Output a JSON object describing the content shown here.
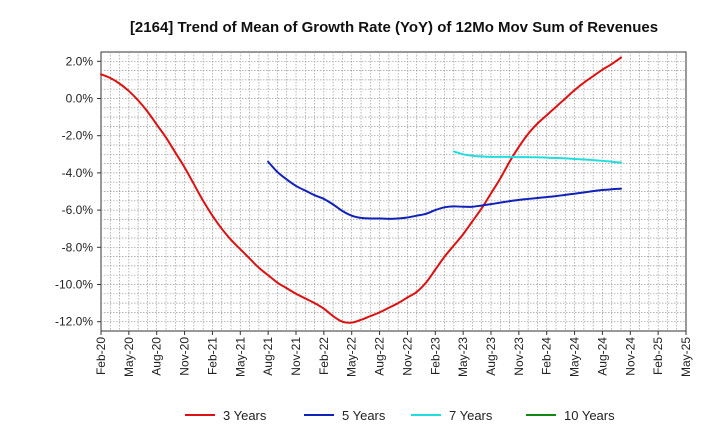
{
  "chart_data": {
    "type": "line",
    "title": "[2164]  Trend of Mean of Growth Rate (YoY) of 12Mo Mov Sum of Revenues",
    "xlabel": "",
    "ylabel": "",
    "ylim": [
      -12.5,
      2.5
    ],
    "yticks": [
      2.0,
      0.0,
      -2.0,
      -4.0,
      -6.0,
      -8.0,
      -10.0,
      -12.0
    ],
    "ytick_labels": [
      "2.0%",
      "0.0%",
      "-2.0%",
      "-4.0%",
      "-6.0%",
      "-8.0%",
      "-10.0%",
      "-12.0%"
    ],
    "xtick_labels": [
      "Feb-20",
      "May-20",
      "Aug-20",
      "Nov-20",
      "Feb-21",
      "May-21",
      "Aug-21",
      "Nov-21",
      "Feb-22",
      "May-22",
      "Aug-22",
      "Nov-22",
      "Feb-23",
      "May-23",
      "Aug-23",
      "Nov-23",
      "Feb-24",
      "May-24",
      "Aug-24",
      "Nov-24",
      "Feb-25",
      "May-25"
    ],
    "x_range_months": [
      0,
      63
    ],
    "grid": true,
    "series": [
      {
        "name": "3 Years",
        "color": "#dd1111",
        "points": [
          [
            0,
            1.3
          ],
          [
            1,
            1.1
          ],
          [
            2,
            0.8
          ],
          [
            3,
            0.4
          ],
          [
            4,
            -0.1
          ],
          [
            5,
            -0.7
          ],
          [
            6,
            -1.4
          ],
          [
            7,
            -2.1
          ],
          [
            8,
            -2.9
          ],
          [
            9,
            -3.7
          ],
          [
            10,
            -4.6
          ],
          [
            11,
            -5.5
          ],
          [
            12,
            -6.3
          ],
          [
            13,
            -7.0
          ],
          [
            14,
            -7.6
          ],
          [
            15,
            -8.1
          ],
          [
            16,
            -8.6
          ],
          [
            17,
            -9.1
          ],
          [
            18,
            -9.5
          ],
          [
            19,
            -9.9
          ],
          [
            20,
            -10.2
          ],
          [
            21,
            -10.5
          ],
          [
            22,
            -10.75
          ],
          [
            23,
            -11.0
          ],
          [
            24,
            -11.3
          ],
          [
            25,
            -11.7
          ],
          [
            26,
            -12.0
          ],
          [
            27,
            -12.05
          ],
          [
            28,
            -11.9
          ],
          [
            29,
            -11.7
          ],
          [
            30,
            -11.5
          ],
          [
            31,
            -11.25
          ],
          [
            32,
            -11.0
          ],
          [
            33,
            -10.7
          ],
          [
            34,
            -10.4
          ],
          [
            35,
            -9.9
          ],
          [
            36,
            -9.2
          ],
          [
            37,
            -8.5
          ],
          [
            38,
            -7.9
          ],
          [
            39,
            -7.3
          ],
          [
            40,
            -6.6
          ],
          [
            41,
            -5.9
          ],
          [
            42,
            -5.1
          ],
          [
            43,
            -4.3
          ],
          [
            44,
            -3.4
          ],
          [
            45,
            -2.6
          ],
          [
            46,
            -1.9
          ],
          [
            47,
            -1.35
          ],
          [
            48,
            -0.9
          ],
          [
            49,
            -0.45
          ],
          [
            50,
            0.0
          ],
          [
            51,
            0.45
          ],
          [
            52,
            0.85
          ],
          [
            53,
            1.2
          ],
          [
            54,
            1.55
          ],
          [
            55,
            1.85
          ],
          [
            56,
            2.2
          ]
        ]
      },
      {
        "name": "5 Years",
        "color": "#1122bb",
        "points": [
          [
            18,
            -3.4
          ],
          [
            19,
            -3.95
          ],
          [
            20,
            -4.35
          ],
          [
            21,
            -4.7
          ],
          [
            22,
            -4.95
          ],
          [
            23,
            -5.2
          ],
          [
            24,
            -5.4
          ],
          [
            25,
            -5.7
          ],
          [
            26,
            -6.05
          ],
          [
            27,
            -6.3
          ],
          [
            28,
            -6.42
          ],
          [
            29,
            -6.45
          ],
          [
            30,
            -6.45
          ],
          [
            31,
            -6.47
          ],
          [
            32,
            -6.45
          ],
          [
            33,
            -6.4
          ],
          [
            34,
            -6.3
          ],
          [
            35,
            -6.2
          ],
          [
            36,
            -6.0
          ],
          [
            37,
            -5.85
          ],
          [
            38,
            -5.8
          ],
          [
            39,
            -5.82
          ],
          [
            40,
            -5.82
          ],
          [
            41,
            -5.75
          ],
          [
            42,
            -5.68
          ],
          [
            43,
            -5.6
          ],
          [
            44,
            -5.52
          ],
          [
            45,
            -5.45
          ],
          [
            46,
            -5.4
          ],
          [
            47,
            -5.35
          ],
          [
            48,
            -5.3
          ],
          [
            49,
            -5.25
          ],
          [
            50,
            -5.18
          ],
          [
            51,
            -5.12
          ],
          [
            52,
            -5.05
          ],
          [
            53,
            -4.98
          ],
          [
            54,
            -4.92
          ],
          [
            55,
            -4.88
          ],
          [
            56,
            -4.85
          ]
        ]
      },
      {
        "name": "7 Years",
        "color": "#22dddd",
        "points": [
          [
            38,
            -2.85
          ],
          [
            39,
            -3.0
          ],
          [
            40,
            -3.08
          ],
          [
            41,
            -3.12
          ],
          [
            42,
            -3.14
          ],
          [
            43,
            -3.14
          ],
          [
            44,
            -3.14
          ],
          [
            45,
            -3.15
          ],
          [
            46,
            -3.15
          ],
          [
            47,
            -3.16
          ],
          [
            48,
            -3.18
          ],
          [
            49,
            -3.2
          ],
          [
            50,
            -3.22
          ],
          [
            51,
            -3.25
          ],
          [
            52,
            -3.28
          ],
          [
            53,
            -3.31
          ],
          [
            54,
            -3.35
          ],
          [
            55,
            -3.4
          ],
          [
            56,
            -3.45
          ]
        ]
      },
      {
        "name": "10 Years",
        "color": "#118811",
        "points": []
      }
    ],
    "legend_position": "bottom"
  }
}
